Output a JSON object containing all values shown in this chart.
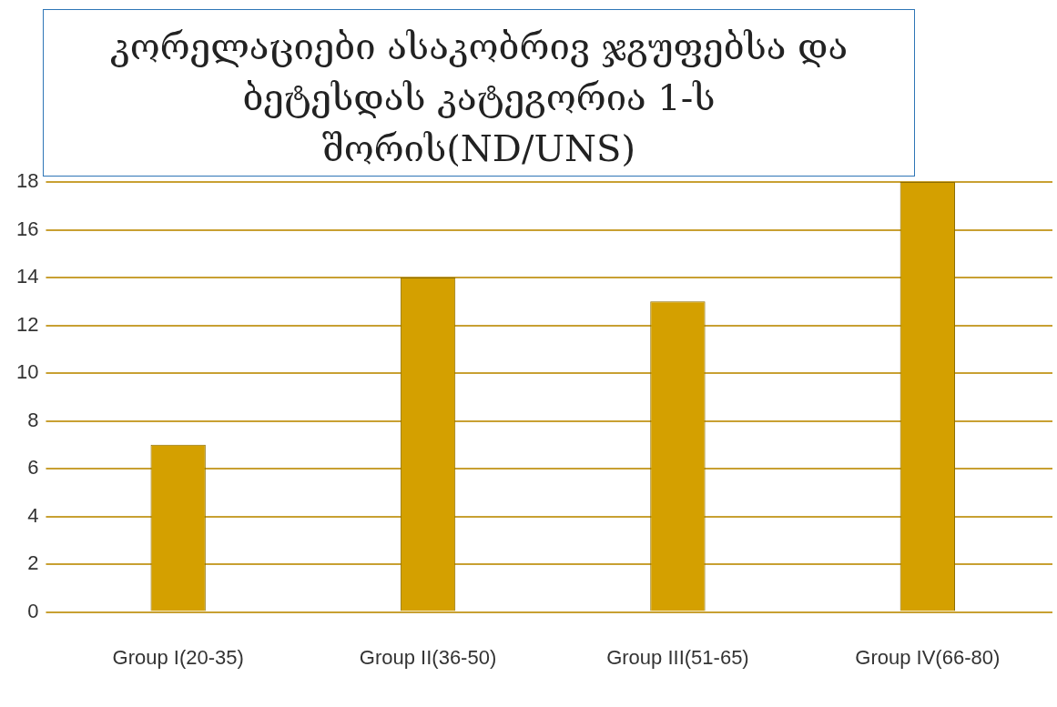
{
  "chart_data": {
    "type": "bar",
    "title": "კორელაციები ასაკობრივ ჯგუფებსა და ბეტესდას კატეგორია 1-ს შორის(ND/UNS)",
    "categories": [
      "Group I(20-35)",
      "Group II(36-50)",
      "Group III(51-65)",
      "Group IV(66-80)"
    ],
    "values": [
      7,
      14,
      13,
      18
    ],
    "color": "#d4a000",
    "ylim": [
      0,
      18
    ],
    "yticks": [
      0,
      2,
      4,
      6,
      8,
      10,
      12,
      14,
      16,
      18
    ],
    "grid": "y",
    "legend": false
  }
}
